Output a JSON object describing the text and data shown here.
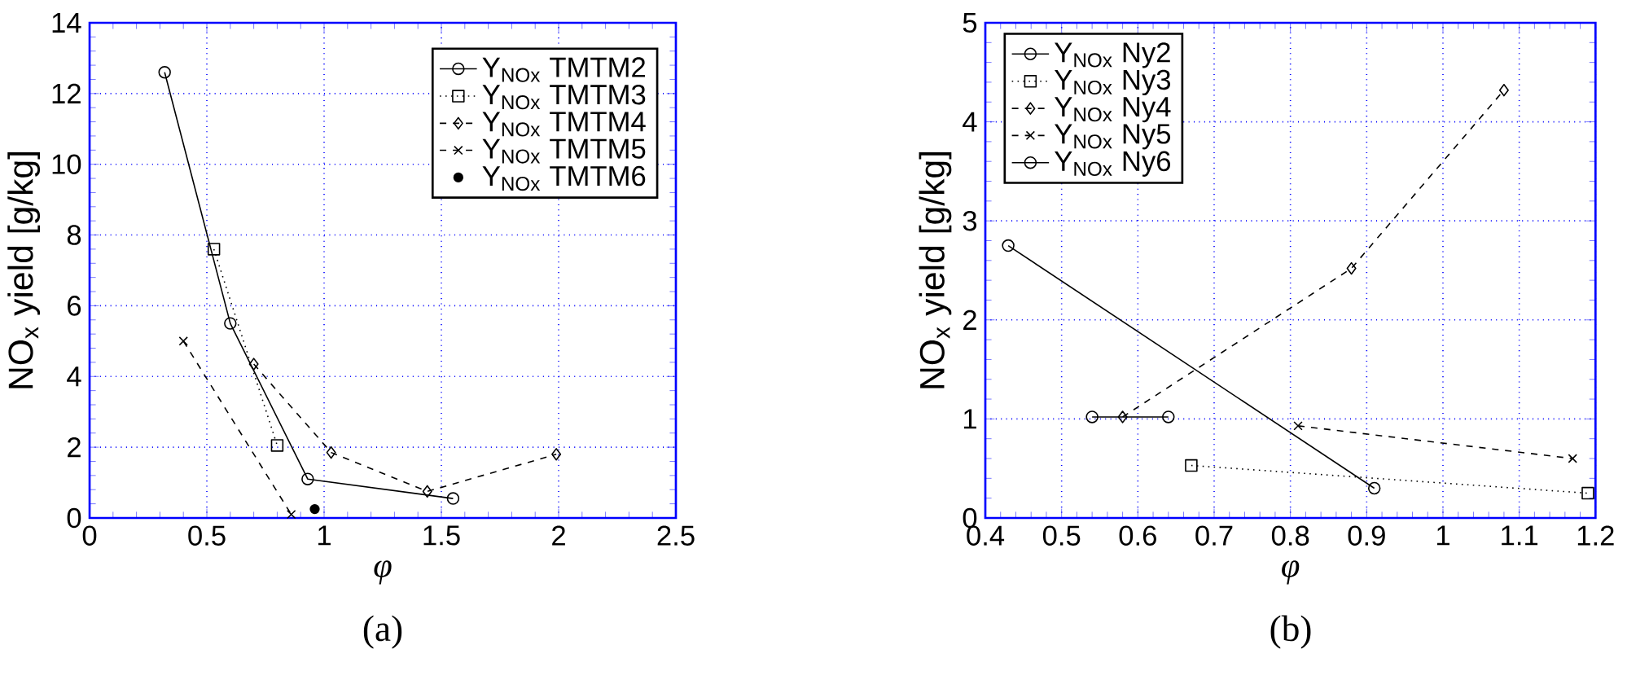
{
  "chart_data": [
    {
      "type": "line",
      "xlabel": "φ",
      "ylabel": "NO$_{x}$ yield [g/kg]",
      "annotations": [
        "(a)"
      ],
      "xlim": [
        0,
        2.5
      ],
      "xticks": [
        0,
        0.5,
        1,
        1.5,
        2,
        2.5
      ],
      "ylim": [
        0,
        14
      ],
      "yticks": [
        0,
        2,
        4,
        6,
        8,
        10,
        12,
        14
      ],
      "grid": true,
      "legend": "top right",
      "series": [
        {
          "name": "Y$_{NOx}$ TMTM2",
          "color": "#000000",
          "marker": "circle",
          "line_style": "solid",
          "x": [
            0.32,
            0.6,
            0.93,
            1.55
          ],
          "values": [
            12.6,
            5.5,
            1.1,
            0.55
          ]
        },
        {
          "name": "Y$_{NOx}$ TMTM3",
          "color": "#000000",
          "marker": "square",
          "line_style": "dotted",
          "x": [
            0.53,
            0.8
          ],
          "values": [
            7.6,
            2.05
          ]
        },
        {
          "name": "Y$_{NOx}$ TMTM4",
          "color": "#000000",
          "marker": "diamond",
          "line_style": "dashed",
          "x": [
            0.7,
            1.03,
            1.44,
            1.99
          ],
          "values": [
            4.35,
            1.85,
            0.75,
            1.8
          ]
        },
        {
          "name": "Y$_{NOx}$ TMTM5",
          "color": "#000000",
          "marker": "cross",
          "line_style": "dashed",
          "x": [
            0.4,
            0.86
          ],
          "values": [
            5.0,
            0.1
          ]
        },
        {
          "name": "Y$_{NOx}$ TMTM6",
          "type": "scatter",
          "color": "#000000",
          "marker": "circle",
          "x": [
            0.96
          ],
          "values": [
            0.25
          ]
        }
      ]
    },
    {
      "type": "line",
      "xlabel": "φ",
      "ylabel": "NO$_{x}$ yield [g/kg]",
      "annotations": [
        "(b)"
      ],
      "xlim": [
        0.4,
        1.2
      ],
      "xticks": [
        0.4,
        0.5,
        0.6,
        0.7,
        0.8,
        0.9,
        1,
        1.1,
        1.2
      ],
      "ylim": [
        0,
        5
      ],
      "yticks": [
        0,
        1,
        2,
        3,
        4,
        5
      ],
      "grid": true,
      "legend": "top left",
      "series": [
        {
          "name": "Y$_{NOx}$ Ny2",
          "color": "#000000",
          "marker": "circle",
          "line_style": "solid",
          "x": [
            0.54,
            0.64
          ],
          "values": [
            1.02,
            1.02
          ]
        },
        {
          "name": "Y$_{NOx}$ Ny3",
          "color": "#000000",
          "marker": "square",
          "line_style": "dotted",
          "x": [
            0.67,
            1.19
          ],
          "values": [
            0.53,
            0.25
          ]
        },
        {
          "name": "Y$_{NOx}$ Ny4",
          "color": "#000000",
          "marker": "diamond",
          "line_style": "dashed",
          "x": [
            0.58,
            0.88,
            1.08
          ],
          "values": [
            1.02,
            2.52,
            4.32
          ]
        },
        {
          "name": "Y$_{NOx}$ Ny5",
          "color": "#000000",
          "marker": "cross",
          "line_style": "dashed",
          "x": [
            0.81,
            1.17
          ],
          "values": [
            0.93,
            0.6
          ]
        },
        {
          "name": "Y$_{NOx}$ Ny6",
          "color": "#000000",
          "marker": "circle",
          "line_style": "solid",
          "x": [
            0.43,
            0.91
          ],
          "values": [
            2.75,
            0.3
          ]
        }
      ]
    }
  ]
}
